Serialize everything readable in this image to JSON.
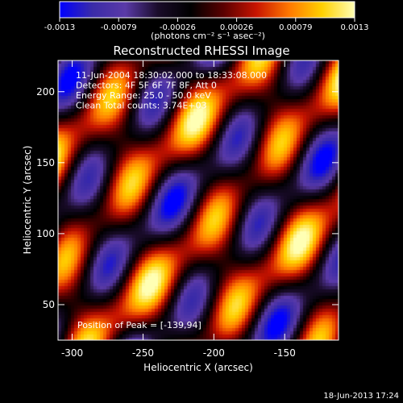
{
  "chart_data": {
    "type": "heatmap",
    "title": "Reconstructed RHESSI Image",
    "xlabel": "Heliocentric X (arcsec)",
    "ylabel": "Heliocentric Y (arcsec)",
    "xlim": [
      -310,
      -112
    ],
    "ylim": [
      25,
      222
    ],
    "x_ticks": [
      -300,
      -250,
      -200,
      -150
    ],
    "y_ticks": [
      50,
      100,
      150,
      200
    ],
    "colorbar": {
      "ticks": [
        "-0.0013",
        "-0.00079",
        "-0.00026",
        "0.00026",
        "0.00079",
        "0.0013"
      ],
      "unit_label": "(photons cm⁻² s⁻¹ asec⁻²)",
      "range": [
        -0.0013,
        0.0013
      ],
      "colors": [
        "#0000ff",
        "#3a2ba8",
        "#5a3aa8",
        "#1a0c2a",
        "#000000",
        "#5a0000",
        "#c81400",
        "#ff7800",
        "#ffd000",
        "#ffffb4"
      ]
    },
    "annotations": [
      "11-Jun-2004 18:30:02.000 to 18:33:08.000",
      "Detectors: 4F 5F 6F 7F 8F, Att 0",
      "Energy Range: 25.0 - 50.0 keV",
      "Clean      Total counts: 3.74E+03"
    ],
    "peak_label": "Position of Peak = [-139,94]",
    "peak": [
      -139,
      94
    ]
  },
  "footer": {
    "timestamp": "18-Jun-2013 17:24"
  }
}
